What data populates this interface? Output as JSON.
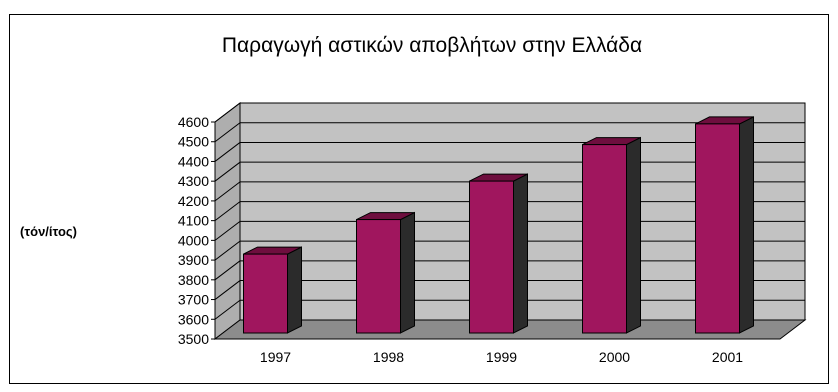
{
  "chart_data": {
    "type": "bar",
    "title": "Παραγωγή αστικών αποβλήτων στην Ελλάδα",
    "ylabel": "(τόν/ίτος)",
    "xlabel": "",
    "categories": [
      "1997",
      "1998",
      "1999",
      "2000",
      "2001"
    ],
    "values": [
      3900,
      4075,
      4270,
      4455,
      4560
    ],
    "ylim": [
      3500,
      4600
    ],
    "yticks": [
      3500,
      3600,
      3700,
      3800,
      3900,
      4000,
      4100,
      4200,
      4300,
      4400,
      4500,
      4600
    ],
    "grid": true,
    "legend": "none",
    "style": "3d-column",
    "colors": {
      "bar_front": "#A0165E",
      "bar_side": "#2B2B2B",
      "bar_top": "#6E0E3E",
      "wall": "#C2C2C2",
      "floor": "#8C8C8C",
      "side_wall": "#AEAEAE"
    }
  }
}
